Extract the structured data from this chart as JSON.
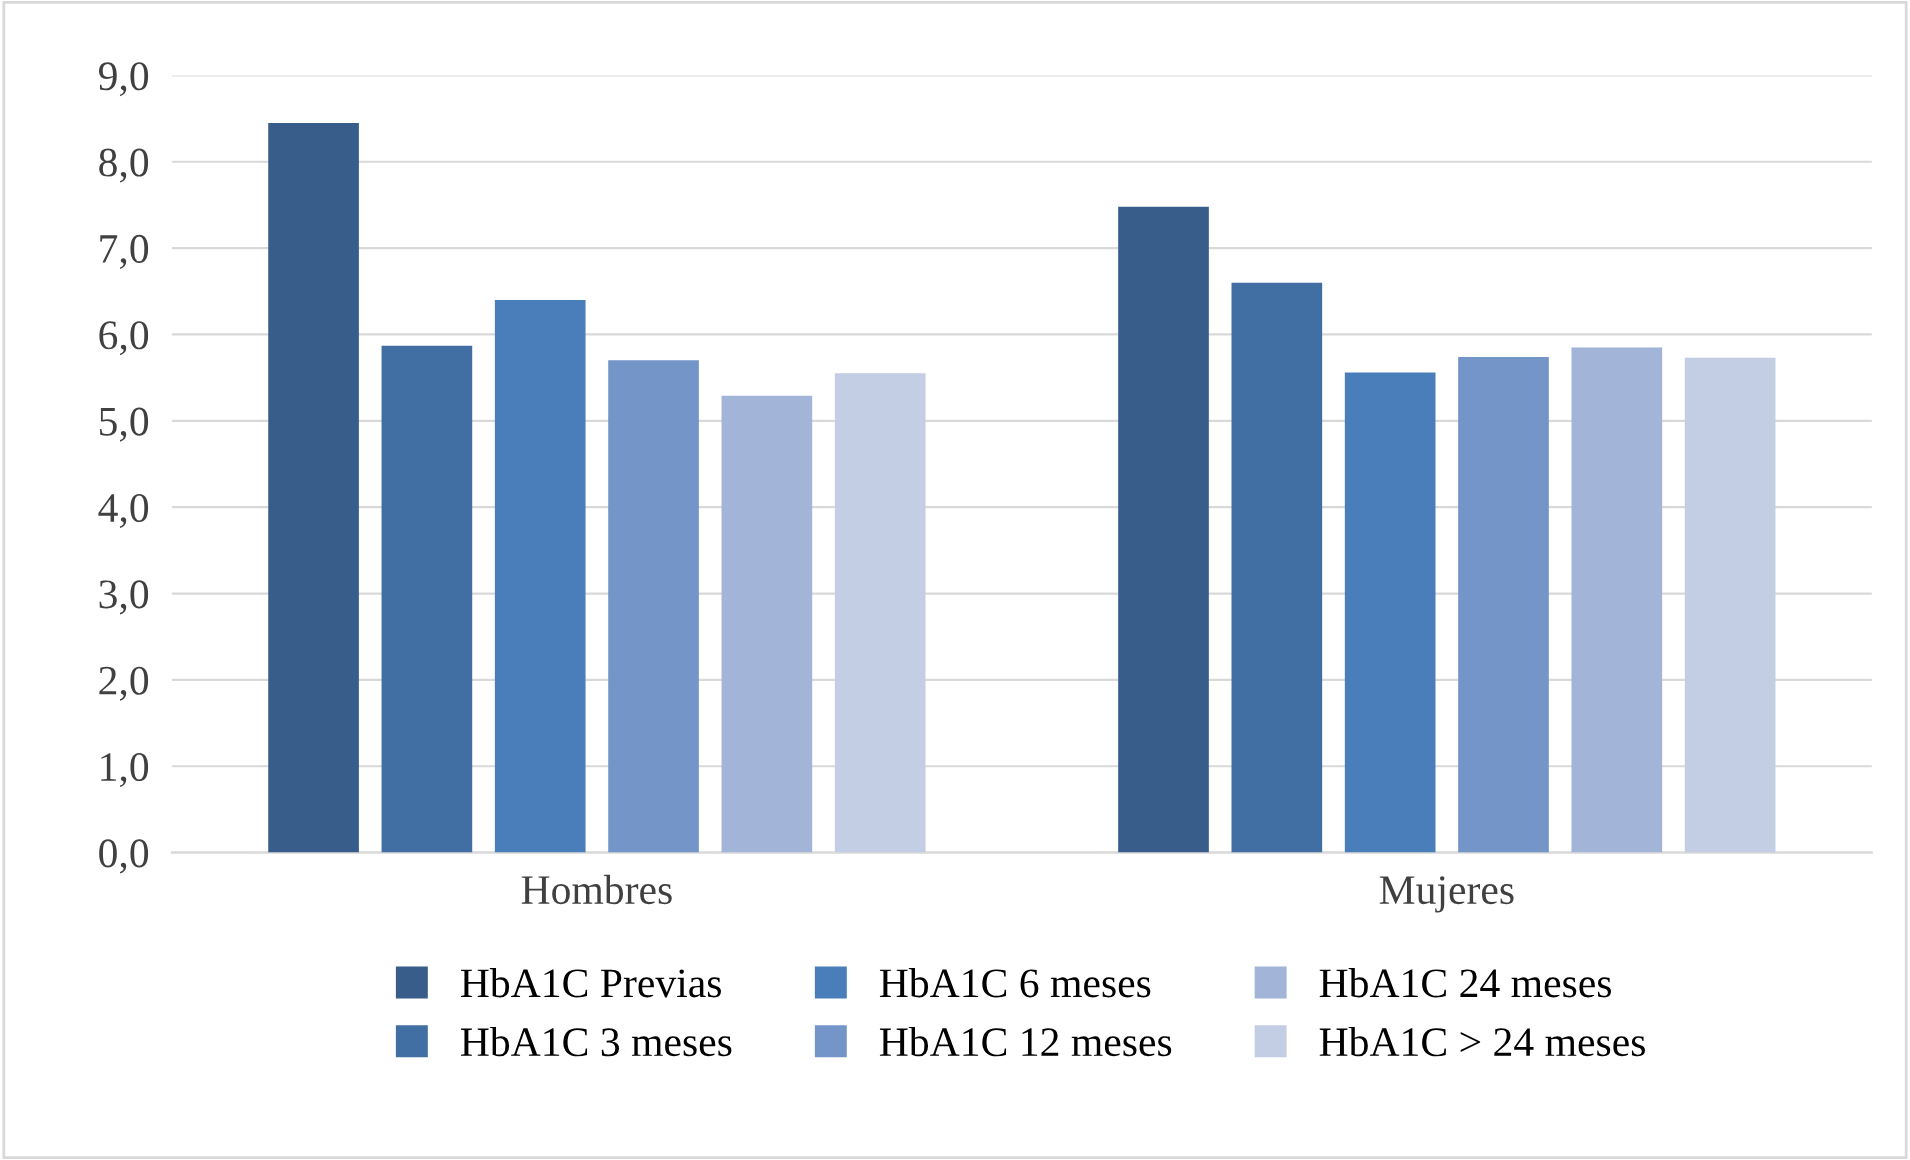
{
  "chart_data": {
    "type": "bar",
    "categories": [
      "Hombres",
      "Mujeres"
    ],
    "series": [
      {
        "name": "HbA1C Previas",
        "color": "#385d8a",
        "values": [
          8.45,
          7.48
        ]
      },
      {
        "name": "HbA1C 3 meses",
        "color": "#416ea3",
        "values": [
          5.87,
          6.6
        ]
      },
      {
        "name": "HbA1C 6 meses",
        "color": "#4a7ebb",
        "values": [
          6.4,
          5.56
        ]
      },
      {
        "name": "HbA1C 12 meses",
        "color": "#7395c8",
        "values": [
          5.7,
          5.74
        ]
      },
      {
        "name": "HbA1C 24 meses",
        "color": "#a2b4d7",
        "values": [
          5.29,
          5.85
        ]
      },
      {
        "name": "HbA1C > 24 meses",
        "color": "#c3cde3",
        "values": [
          5.55,
          5.73
        ]
      }
    ],
    "ylim": [
      0,
      9
    ],
    "yticks": [
      {
        "value": 0,
        "label": "0,0"
      },
      {
        "value": 1,
        "label": "1,0"
      },
      {
        "value": 2,
        "label": "2,0"
      },
      {
        "value": 3,
        "label": "3,0"
      },
      {
        "value": 4,
        "label": "4,0"
      },
      {
        "value": 5,
        "label": "5,0"
      },
      {
        "value": 6,
        "label": "6,0"
      },
      {
        "value": 7,
        "label": "7,0"
      },
      {
        "value": 8,
        "label": "8,0"
      },
      {
        "value": 9,
        "label": "9,0"
      }
    ],
    "grid": "y",
    "legend": "bottom"
  }
}
